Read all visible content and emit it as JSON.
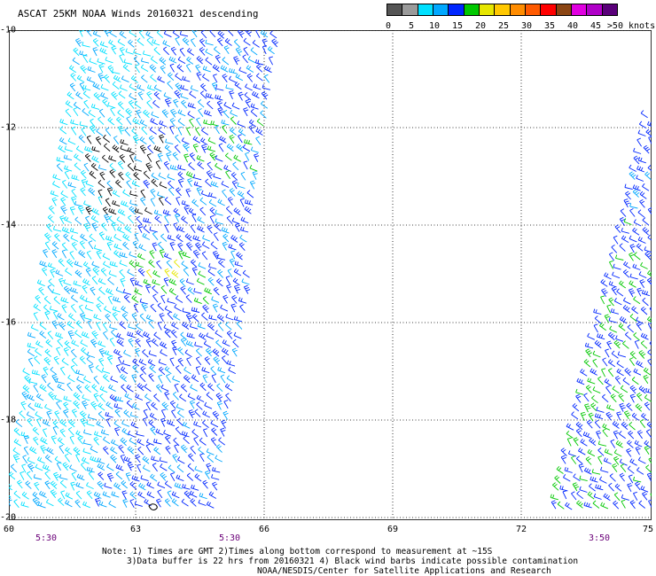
{
  "title": "ASCAT 25KM NOAA Winds 20160321 descending",
  "scale": {
    "colors": [
      "#555555",
      "#9a9a9a",
      "#00e0ff",
      "#00a8ff",
      "#0026ff",
      "#00c800",
      "#e6e600",
      "#ffc800",
      "#ff8c00",
      "#ff5a00",
      "#ff0000",
      "#8b4513",
      "#e000e0",
      "#b000c8",
      "#5a007a"
    ],
    "labels": [
      "0",
      "5",
      "10",
      "15",
      "20",
      "25",
      "30",
      "35",
      "40",
      "45",
      ">50 knots"
    ]
  },
  "axes": {
    "lat_labels": [
      "-10",
      "-12",
      "-14",
      "-16",
      "-18",
      "-20"
    ],
    "lon_labels": [
      "60",
      "63",
      "66",
      "69",
      "72",
      "75"
    ],
    "lat_range": [
      -20,
      -10
    ],
    "lon_range": [
      60,
      75
    ]
  },
  "times": [
    "5:30",
    "5:30",
    "3:50"
  ],
  "notes": {
    "line1": "Note: 1) Times are GMT 2)Times along bottom correspond to measurement at ~15S",
    "line2": "3)Data buffer is 22 hrs from 20160321 4) Black wind barbs indicate possible contamination",
    "line3": "NOAA/NESDIS/Center for Satellite Applications and Research"
  },
  "barb_colors": {
    "light_cyan": "#00e0ff",
    "cyan": "#00a8ff",
    "blue": "#0026ff",
    "green": "#00c800",
    "yellow": "#e6e600",
    "black": "#000000"
  }
}
